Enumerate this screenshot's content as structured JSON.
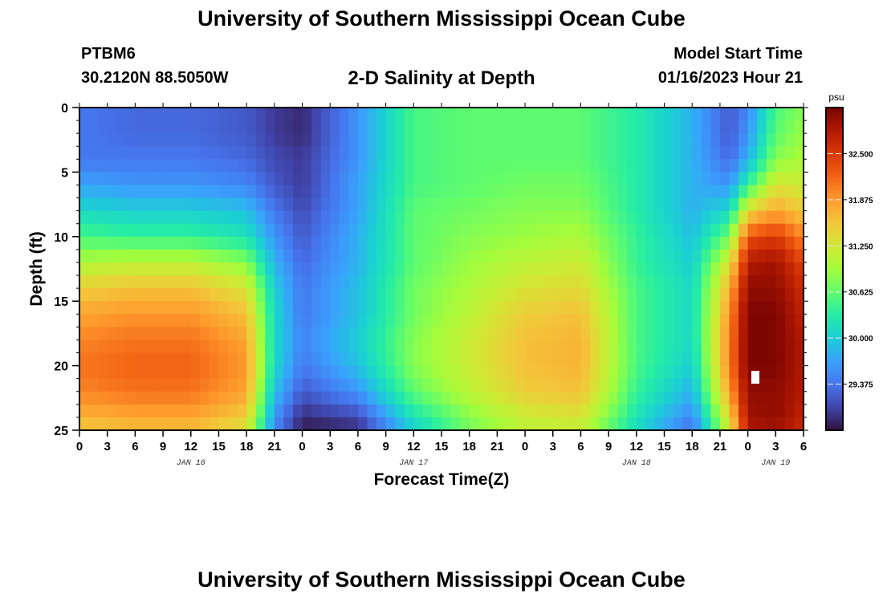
{
  "header": {
    "title": "University of Southern Mississippi Ocean Cube",
    "station_id": "PTBM6",
    "coordinates": "30.2120N  88.5050W",
    "subtitle": "2-D Salinity at Depth",
    "model_start_label": "Model Start Time",
    "model_start_value": "01/16/2023 Hour 21"
  },
  "footer": {
    "title": "University of Southern Mississippi Ocean Cube"
  },
  "chart_data": {
    "type": "heatmap",
    "title": "2-D Salinity at Depth",
    "xlabel": "Forecast Time(Z)",
    "ylabel": "Depth (ft)",
    "x_range_hours": [
      0,
      78
    ],
    "y_range_ft": [
      0,
      25
    ],
    "x_ticks": [
      "0",
      "3",
      "6",
      "9",
      "12",
      "15",
      "18",
      "21",
      "0",
      "3",
      "6",
      "9",
      "12",
      "15",
      "18",
      "21",
      "0",
      "3",
      "6",
      "9",
      "12",
      "15",
      "18",
      "21",
      "0",
      "3",
      "6"
    ],
    "date_labels": [
      {
        "label": "JAN 16",
        "hour": 12
      },
      {
        "label": "JAN 17",
        "hour": 36
      },
      {
        "label": "JAN 18",
        "hour": 60
      },
      {
        "label": "JAN 19",
        "hour": 75
      }
    ],
    "y_ticks": [
      0,
      5,
      10,
      15,
      20,
      25
    ],
    "colorbar": {
      "unit": "psu",
      "min": 28.75,
      "max": 33.125,
      "ticks": [
        "32.500",
        "31.875",
        "31.250",
        "30.625",
        "30.000",
        "29.375"
      ],
      "tick_values": [
        32.5,
        31.875,
        31.25,
        30.625,
        30.0,
        29.375
      ]
    },
    "depth_ft": [
      0,
      2,
      4,
      6,
      8,
      10,
      12,
      14,
      16,
      18,
      20,
      22,
      24,
      25
    ],
    "time_hours": [
      0,
      6,
      12,
      18,
      21,
      24,
      30,
      36,
      42,
      48,
      54,
      60,
      66,
      70,
      72,
      75,
      78
    ],
    "salinity_psu": [
      [
        29.4,
        29.3,
        29.3,
        29.2,
        29.0,
        28.9,
        29.6,
        30.5,
        30.6,
        30.6,
        30.6,
        30.3,
        29.8,
        29.2,
        29.5,
        30.5,
        30.8
      ],
      [
        29.4,
        29.3,
        29.3,
        29.2,
        29.0,
        28.9,
        29.6,
        30.5,
        30.6,
        30.6,
        30.6,
        30.3,
        29.8,
        29.2,
        29.6,
        30.6,
        30.9
      ],
      [
        29.4,
        29.4,
        29.4,
        29.3,
        29.1,
        29.0,
        29.6,
        30.5,
        30.6,
        30.6,
        30.6,
        30.3,
        29.8,
        29.3,
        29.8,
        30.8,
        31.0
      ],
      [
        29.7,
        29.6,
        29.6,
        29.5,
        29.2,
        29.0,
        29.7,
        30.5,
        30.6,
        30.7,
        30.7,
        30.3,
        29.8,
        29.6,
        30.4,
        31.3,
        31.2
      ],
      [
        30.1,
        30.0,
        30.0,
        29.9,
        29.4,
        29.1,
        29.7,
        30.6,
        30.7,
        30.8,
        30.8,
        30.3,
        29.8,
        30.1,
        31.4,
        31.8,
        31.5
      ],
      [
        30.5,
        30.4,
        30.4,
        30.2,
        29.6,
        29.2,
        29.8,
        30.6,
        30.8,
        30.9,
        31.0,
        30.4,
        29.9,
        30.7,
        32.3,
        32.5,
        32.0
      ],
      [
        31.0,
        31.1,
        31.1,
        30.8,
        29.8,
        29.3,
        29.8,
        30.6,
        30.9,
        31.1,
        31.2,
        30.4,
        30.0,
        31.3,
        32.8,
        32.9,
        32.4
      ],
      [
        31.5,
        31.6,
        31.6,
        31.3,
        30.0,
        29.4,
        29.9,
        30.7,
        31.0,
        31.3,
        31.4,
        30.5,
        30.1,
        31.7,
        33.0,
        33.0,
        32.6
      ],
      [
        31.8,
        31.9,
        31.9,
        31.6,
        30.1,
        29.4,
        29.9,
        30.7,
        31.1,
        31.5,
        31.6,
        30.5,
        30.1,
        31.9,
        33.1,
        33.1,
        32.7
      ],
      [
        32.0,
        32.1,
        32.1,
        31.8,
        30.1,
        29.5,
        30.0,
        30.8,
        31.2,
        31.6,
        31.7,
        30.5,
        30.1,
        32.0,
        33.1,
        33.1,
        32.8
      ],
      [
        32.1,
        32.2,
        32.2,
        31.9,
        30.1,
        29.4,
        29.9,
        30.8,
        31.2,
        31.6,
        31.7,
        30.5,
        30.0,
        32.0,
        33.1,
        33.1,
        32.8
      ],
      [
        32.0,
        32.1,
        32.1,
        31.8,
        29.9,
        29.2,
        29.6,
        30.6,
        31.1,
        31.5,
        31.6,
        30.4,
        29.8,
        31.8,
        33.0,
        33.0,
        32.8
      ],
      [
        31.7,
        31.8,
        31.8,
        31.5,
        29.6,
        28.9,
        29.1,
        30.2,
        30.8,
        31.2,
        31.3,
        30.2,
        29.5,
        31.4,
        32.9,
        33.0,
        32.7
      ],
      [
        31.5,
        31.6,
        31.6,
        31.3,
        29.5,
        28.8,
        28.9,
        30.0,
        30.7,
        31.1,
        31.1,
        30.1,
        29.3,
        31.2,
        32.8,
        32.9,
        32.6
      ]
    ],
    "colors": {
      "frame": "#000000",
      "colormap": [
        "#30123b",
        "#4145ab",
        "#4675ed",
        "#39a2fc",
        "#1bcfd4",
        "#24eca6",
        "#61fc6c",
        "#a4fc3b",
        "#d1e834",
        "#f3c63a",
        "#fe9b2d",
        "#f36315",
        "#d93806",
        "#b11901",
        "#7a0402"
      ]
    }
  }
}
